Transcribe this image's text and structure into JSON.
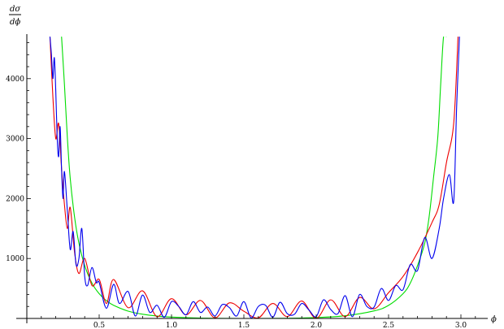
{
  "chart_data": {
    "type": "line",
    "title": "",
    "xlabel": "ϕ",
    "ylabel_top": "dσ",
    "ylabel_bottom": "dϕ",
    "xlim": [
      0,
      3.14159
    ],
    "ylim": [
      0,
      4700
    ],
    "x_ticks": [
      {
        "value": 0.5,
        "label": "0.5"
      },
      {
        "value": 1.0,
        "label": "1.0"
      },
      {
        "value": 1.5,
        "label": "1.5"
      },
      {
        "value": 2.0,
        "label": "2.0"
      },
      {
        "value": 2.5,
        "label": "2.5"
      },
      {
        "value": 3.0,
        "label": "3.0"
      }
    ],
    "x_minor_step": 0.1,
    "y_ticks": [
      {
        "value": 1000,
        "label": "1000"
      },
      {
        "value": 2000,
        "label": "2000"
      },
      {
        "value": 3000,
        "label": "3000"
      },
      {
        "value": 4000,
        "label": "4000"
      }
    ],
    "y_minor_step": 200,
    "grid": false,
    "legend": "none",
    "series": [
      {
        "color": "#00dd00",
        "x": [
          0.24,
          0.26,
          0.28,
          0.3,
          0.33,
          0.36,
          0.4,
          0.45,
          0.5,
          0.55,
          0.6,
          0.7,
          0.8,
          0.9,
          1.0,
          1.2,
          1.4,
          1.5708,
          1.8,
          2.0,
          2.2,
          2.4,
          2.5,
          2.6,
          2.65,
          2.7,
          2.75,
          2.78,
          2.81,
          2.84,
          2.86,
          2.88,
          2.9
        ],
        "y": [
          4700,
          3900,
          3020,
          2335,
          1690,
          1257,
          882,
          590,
          413,
          297,
          218,
          122,
          70,
          40,
          23,
          6,
          1,
          0,
          3,
          15,
          45,
          126,
          218,
          413,
          590,
          882,
          1257,
          1690,
          2335,
          3020,
          3900,
          4700,
          4700
        ]
      },
      {
        "color": "#ee0000",
        "x": [
          0.16,
          0.18,
          0.2,
          0.22,
          0.24,
          0.26,
          0.28,
          0.3,
          0.33,
          0.36,
          0.4,
          0.45,
          0.5,
          0.55,
          0.6,
          0.7,
          0.8,
          0.9,
          1.0,
          1.1,
          1.2,
          1.3,
          1.4,
          1.5,
          1.6,
          1.7,
          1.8,
          1.9,
          2.0,
          2.1,
          2.2,
          2.3,
          2.4,
          2.5,
          2.6,
          2.7,
          2.8,
          2.85,
          2.9,
          2.95,
          2.98
        ],
        "y": [
          4700,
          3700,
          3000,
          3250,
          2500,
          1900,
          1500,
          1850,
          1100,
          750,
          1000,
          550,
          650,
          250,
          650,
          180,
          460,
          30,
          330,
          60,
          300,
          10,
          260,
          120,
          10,
          250,
          30,
          290,
          0,
          310,
          30,
          350,
          160,
          430,
          700,
          1100,
          1600,
          1900,
          2600,
          3250,
          4700
        ]
      },
      {
        "color": "#0000ee",
        "x": [
          0.16,
          0.17,
          0.18,
          0.19,
          0.2,
          0.21,
          0.22,
          0.23,
          0.24,
          0.25,
          0.26,
          0.28,
          0.3,
          0.32,
          0.34,
          0.36,
          0.38,
          0.4,
          0.42,
          0.45,
          0.48,
          0.5,
          0.55,
          0.6,
          0.64,
          0.7,
          0.75,
          0.8,
          0.85,
          0.9,
          0.95,
          1.0,
          1.05,
          1.1,
          1.15,
          1.2,
          1.25,
          1.3,
          1.35,
          1.4,
          1.45,
          1.5,
          1.55,
          1.6,
          1.65,
          1.7,
          1.75,
          1.8,
          1.85,
          1.9,
          1.95,
          2.0,
          2.05,
          2.1,
          2.15,
          2.2,
          2.25,
          2.3,
          2.35,
          2.4,
          2.45,
          2.5,
          2.55,
          2.6,
          2.65,
          2.7,
          2.75,
          2.8,
          2.85,
          2.88,
          2.92,
          2.95,
          2.97,
          2.99
        ],
        "y": [
          4700,
          4400,
          4000,
          4350,
          3800,
          3000,
          2700,
          3200,
          2500,
          2000,
          2450,
          1800,
          1150,
          1450,
          900,
          1000,
          1500,
          700,
          550,
          850,
          600,
          600,
          170,
          570,
          250,
          450,
          40,
          390,
          100,
          220,
          20,
          280,
          200,
          60,
          280,
          100,
          190,
          40,
          230,
          180,
          40,
          280,
          10,
          200,
          220,
          20,
          270,
          80,
          70,
          250,
          140,
          30,
          310,
          150,
          80,
          380,
          30,
          400,
          200,
          190,
          500,
          300,
          550,
          480,
          900,
          800,
          1350,
          1000,
          1500,
          2000,
          2400,
          1950,
          3500,
          4700
        ]
      }
    ]
  }
}
